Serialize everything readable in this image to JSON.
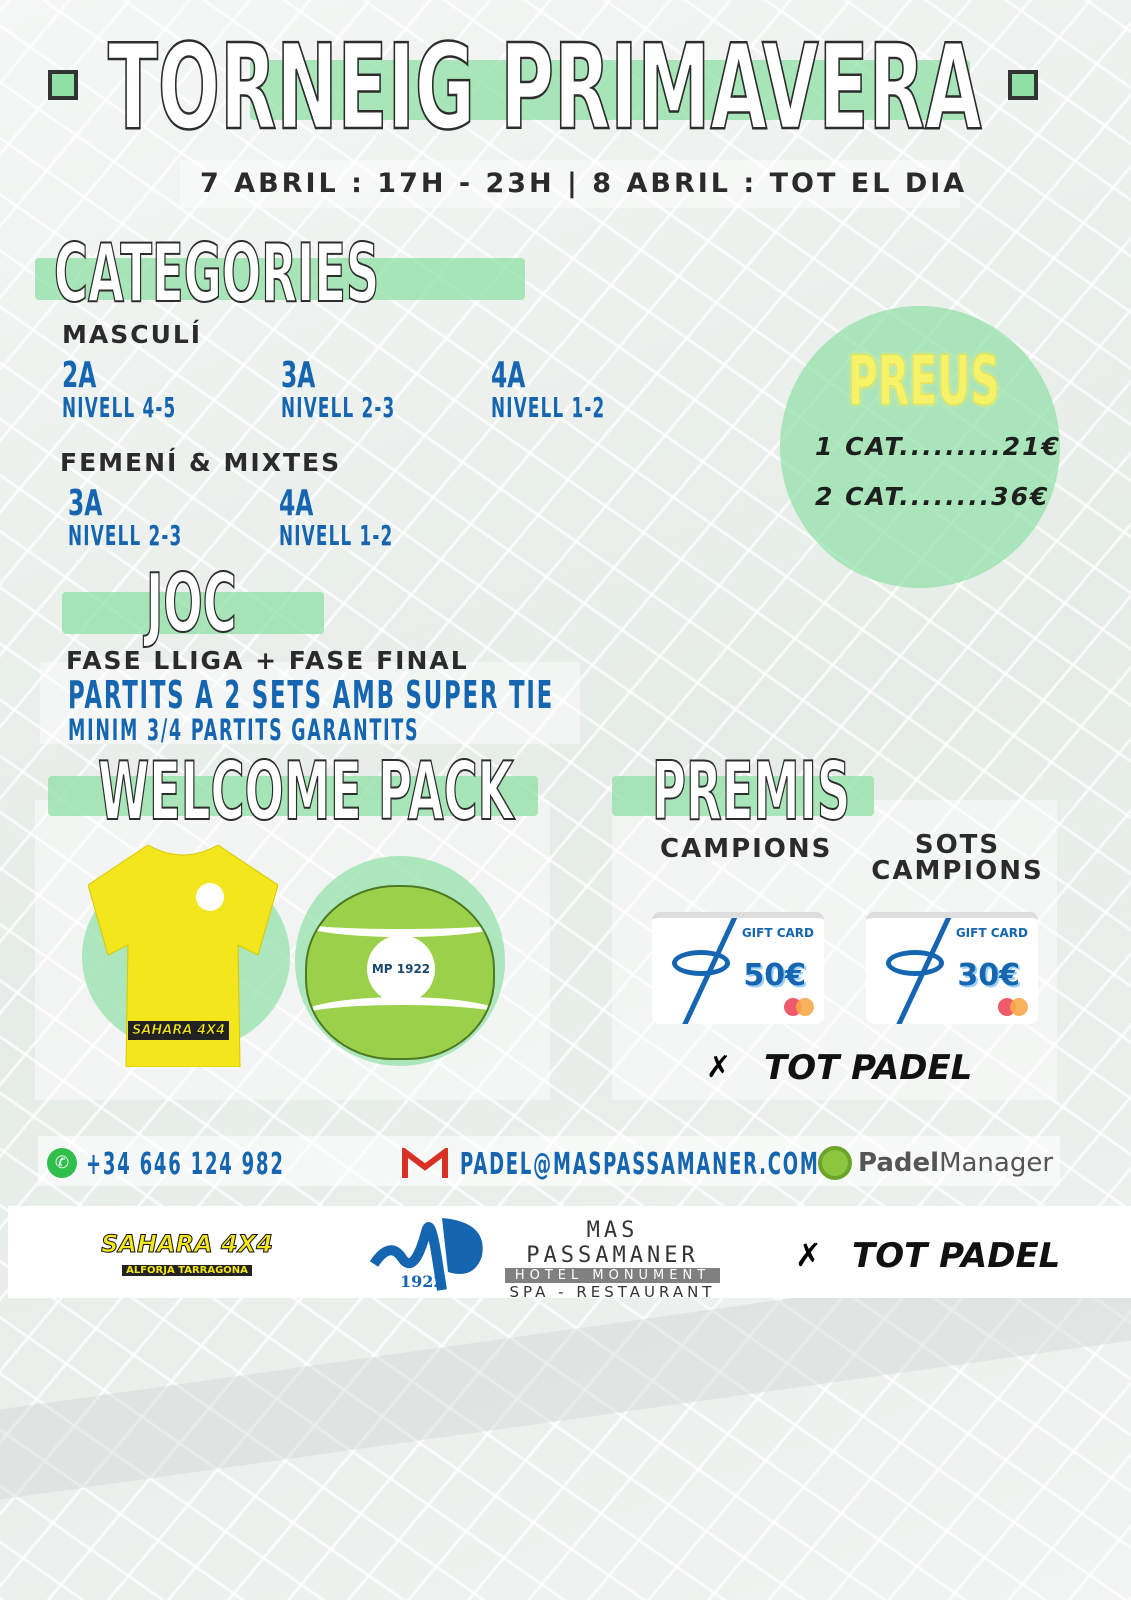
{
  "title": "TORNEIG PRIMAVERA",
  "schedule": "7 ABRIL : 17H - 23H | 8 ABRIL : TOT EL DIA",
  "categories": {
    "heading": "CATEGORIES",
    "masculi": {
      "label": "MASCULÍ",
      "items": [
        {
          "cat": "2A",
          "level": "NIVELL 4-5"
        },
        {
          "cat": "3A",
          "level": "NIVELL 2-3"
        },
        {
          "cat": "4A",
          "level": "NIVELL 1-2"
        }
      ]
    },
    "femeni": {
      "label": "FEMENÍ & MIXTES",
      "items": [
        {
          "cat": "3A",
          "level": "NIVELL 2-3"
        },
        {
          "cat": "4A",
          "level": "NIVELL 1-2"
        }
      ]
    }
  },
  "preus": {
    "heading": "PREUS",
    "lines": [
      "1 CAT.........21€",
      "2 CAT........36€"
    ]
  },
  "joc": {
    "heading": "JOC",
    "line1": "FASE LLIGA + FASE FINAL",
    "line2": "PARTITS A 2 SETS AMB SUPER TIE",
    "line3": "MINIM 3/4 PARTITS GARANTITS"
  },
  "welcome": {
    "heading": "WELCOME PACK",
    "shirt_logo": "SAHARA 4X4",
    "bag_logo": "MP 1922"
  },
  "premis": {
    "heading": "PREMIS",
    "campions": "CAMPIONS",
    "sots": [
      "SOTS",
      "CAMPIONS"
    ],
    "cards": [
      {
        "label": "GIFT CARD",
        "amount": "50€"
      },
      {
        "label": "GIFT CARD",
        "amount": "30€"
      }
    ],
    "sponsor": "TOT PADEL"
  },
  "contact": {
    "phone": "+34 646 124 982",
    "email": "PADEL@MASPASSAMANER.COM",
    "app": "PadelManager",
    "app_bold": "Padel",
    "app_rest": "Manager"
  },
  "sponsors": {
    "sahara": "SAHARA 4X4",
    "sahara_sub": "ALFORJA TARRAGONA",
    "mp_year": "1922",
    "mp_name": "MAS PASSAMANER",
    "mp_hotel": "HOTEL MONUMENT",
    "mp_spa": "SPA - RESTAURANT",
    "totpadel": "TOT PADEL"
  },
  "colors": {
    "accent_green": "#8fe0a5",
    "blue": "#1565b0",
    "dark": "#2b2b2b",
    "neon_yellow": "#f6f36a"
  }
}
